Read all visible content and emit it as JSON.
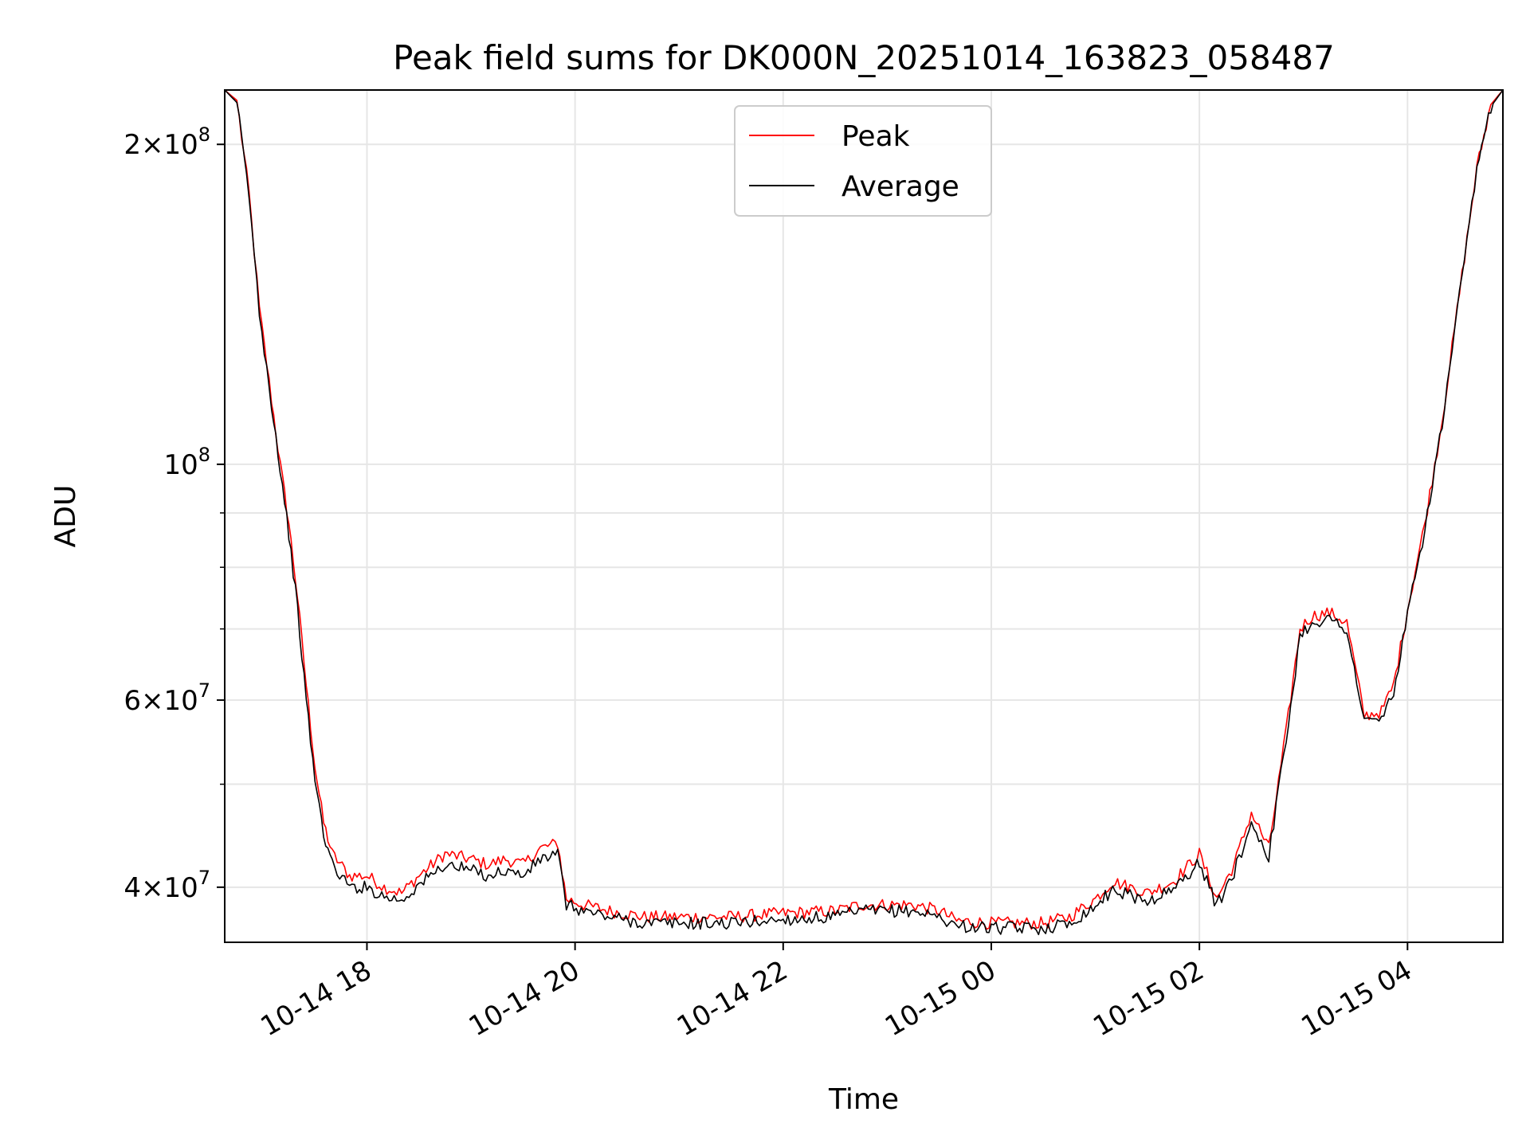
{
  "chart_data": {
    "type": "line",
    "title": "Peak field sums for DK000N_20251014_163823_058487",
    "xlabel": "Time",
    "ylabel": "ADU",
    "yscale": "log",
    "ylim": [
      35500000,
      225000000
    ],
    "xlim": [
      "2025-10-14 16:38",
      "2025-10-15 04:55"
    ],
    "grid": true,
    "legend": "upper center",
    "x_ticks": [
      {
        "t": "2025-10-14 18:00",
        "label": "10-14 18"
      },
      {
        "t": "2025-10-14 20:00",
        "label": "10-14 20"
      },
      {
        "t": "2025-10-14 22:00",
        "label": "10-14 22"
      },
      {
        "t": "2025-10-15 00:00",
        "label": "10-15 00"
      },
      {
        "t": "2025-10-15 02:00",
        "label": "10-15 02"
      },
      {
        "t": "2025-10-15 04:00",
        "label": "10-15 04"
      }
    ],
    "y_ticks": [
      {
        "value": 40000000,
        "mant": "4",
        "exp": "7"
      },
      {
        "value": 60000000,
        "mant": "6",
        "exp": "7"
      },
      {
        "value": 100000000,
        "mant": "",
        "exp": "8"
      },
      {
        "value": 200000000,
        "mant": "2",
        "exp": "8"
      }
    ],
    "y_minor": [
      50000000,
      70000000,
      80000000,
      90000000
    ],
    "colors": {
      "Peak": "#ff0000",
      "Average": "#000000"
    },
    "series": [
      {
        "name": "Peak",
        "color": "#ff0000",
        "x": [
          "2025-10-14 16:38",
          "2025-10-14 16:45",
          "2025-10-14 16:52",
          "2025-10-14 16:58",
          "2025-10-14 17:05",
          "2025-10-14 17:10",
          "2025-10-14 17:15",
          "2025-10-14 17:20",
          "2025-10-14 17:25",
          "2025-10-14 17:30",
          "2025-10-14 17:35",
          "2025-10-14 17:40",
          "2025-10-14 17:50",
          "2025-10-14 18:00",
          "2025-10-14 18:10",
          "2025-10-14 18:20",
          "2025-10-14 18:30",
          "2025-10-14 18:45",
          "2025-10-14 19:00",
          "2025-10-14 19:10",
          "2025-10-14 19:20",
          "2025-10-14 19:30",
          "2025-10-14 19:40",
          "2025-10-14 19:50",
          "2025-10-14 19:55",
          "2025-10-14 20:05",
          "2025-10-14 20:20",
          "2025-10-14 20:40",
          "2025-10-14 21:00",
          "2025-10-14 21:30",
          "2025-10-14 22:00",
          "2025-10-14 22:30",
          "2025-10-14 22:45",
          "2025-10-14 23:00",
          "2025-10-14 23:15",
          "2025-10-14 23:30",
          "2025-10-14 23:40",
          "2025-10-15 00:00",
          "2025-10-15 00:30",
          "2025-10-15 00:45",
          "2025-10-15 01:00",
          "2025-10-15 01:10",
          "2025-10-15 01:20",
          "2025-10-15 01:30",
          "2025-10-15 01:45",
          "2025-10-15 02:00",
          "2025-10-15 02:10",
          "2025-10-15 02:20",
          "2025-10-15 02:30",
          "2025-10-15 02:40",
          "2025-10-15 02:50",
          "2025-10-15 02:58",
          "2025-10-15 03:05",
          "2025-10-15 03:15",
          "2025-10-15 03:25",
          "2025-10-15 03:35",
          "2025-10-15 03:45",
          "2025-10-15 03:52",
          "2025-10-15 04:00",
          "2025-10-15 04:10",
          "2025-10-15 04:20",
          "2025-10-15 04:30",
          "2025-10-15 04:40",
          "2025-10-15 04:48",
          "2025-10-15 04:55"
        ],
        "values": [
          225000000,
          220000000,
          180000000,
          140000000,
          115000000,
          100000000,
          88000000,
          75000000,
          62000000,
          52000000,
          46000000,
          43000000,
          41000000,
          41000000,
          40000000,
          39500000,
          41000000,
          43000000,
          42500000,
          42000000,
          42500000,
          42000000,
          43500000,
          44000000,
          39000000,
          38500000,
          38000000,
          37500000,
          37500000,
          37500000,
          37800000,
          38000000,
          38500000,
          38500000,
          38500000,
          38000000,
          37200000,
          37000000,
          37000000,
          37500000,
          39000000,
          40500000,
          40000000,
          39500000,
          40500000,
          43000000,
          39000000,
          42000000,
          47000000,
          43500000,
          56000000,
          70000000,
          72000000,
          72500000,
          71000000,
          58000000,
          58500000,
          62000000,
          73000000,
          88000000,
          110000000,
          145000000,
          190000000,
          218000000,
          225000000
        ]
      },
      {
        "name": "Average",
        "color": "#000000",
        "x": [
          "2025-10-14 16:38",
          "2025-10-14 16:45",
          "2025-10-14 16:52",
          "2025-10-14 16:58",
          "2025-10-14 17:05",
          "2025-10-14 17:10",
          "2025-10-14 17:15",
          "2025-10-14 17:20",
          "2025-10-14 17:25",
          "2025-10-14 17:30",
          "2025-10-14 17:35",
          "2025-10-14 17:40",
          "2025-10-14 17:50",
          "2025-10-14 18:00",
          "2025-10-14 18:10",
          "2025-10-14 18:20",
          "2025-10-14 18:30",
          "2025-10-14 18:45",
          "2025-10-14 19:00",
          "2025-10-14 19:10",
          "2025-10-14 19:20",
          "2025-10-14 19:30",
          "2025-10-14 19:40",
          "2025-10-14 19:50",
          "2025-10-14 19:55",
          "2025-10-14 20:05",
          "2025-10-14 20:20",
          "2025-10-14 20:40",
          "2025-10-14 21:00",
          "2025-10-14 21:30",
          "2025-10-14 22:00",
          "2025-10-14 22:30",
          "2025-10-14 22:45",
          "2025-10-14 23:00",
          "2025-10-14 23:15",
          "2025-10-14 23:30",
          "2025-10-14 23:40",
          "2025-10-15 00:00",
          "2025-10-15 00:30",
          "2025-10-15 00:45",
          "2025-10-15 01:00",
          "2025-10-15 01:10",
          "2025-10-15 01:20",
          "2025-10-15 01:30",
          "2025-10-15 01:45",
          "2025-10-15 02:00",
          "2025-10-15 02:10",
          "2025-10-15 02:20",
          "2025-10-15 02:30",
          "2025-10-15 02:40",
          "2025-10-15 02:50",
          "2025-10-15 02:58",
          "2025-10-15 03:05",
          "2025-10-15 03:15",
          "2025-10-15 03:25",
          "2025-10-15 03:35",
          "2025-10-15 03:45",
          "2025-10-15 03:52",
          "2025-10-15 04:00",
          "2025-10-15 04:10",
          "2025-10-15 04:20",
          "2025-10-15 04:30",
          "2025-10-15 04:40",
          "2025-10-15 04:48",
          "2025-10-15 04:55"
        ],
        "values": [
          225000000,
          219000000,
          179000000,
          139000000,
          114000000,
          99000000,
          86000000,
          73000000,
          60000000,
          50500000,
          45000000,
          42000000,
          40000000,
          40000000,
          39200000,
          38900000,
          40200000,
          42000000,
          41500000,
          41000000,
          41500000,
          41000000,
          42500000,
          43000000,
          38500000,
          38000000,
          37500000,
          37000000,
          37000000,
          37000000,
          37300000,
          37500000,
          38000000,
          38000000,
          38000000,
          37500000,
          36800000,
          36600000,
          36600000,
          37000000,
          38400000,
          39800000,
          39300000,
          38800000,
          39800000,
          42200000,
          38400000,
          41300000,
          46000000,
          42800000,
          55000000,
          69000000,
          71000000,
          71500000,
          70000000,
          57200000,
          57600000,
          61000000,
          72000000,
          87000000,
          109000000,
          144000000,
          189000000,
          217000000,
          225000000
        ]
      }
    ]
  }
}
